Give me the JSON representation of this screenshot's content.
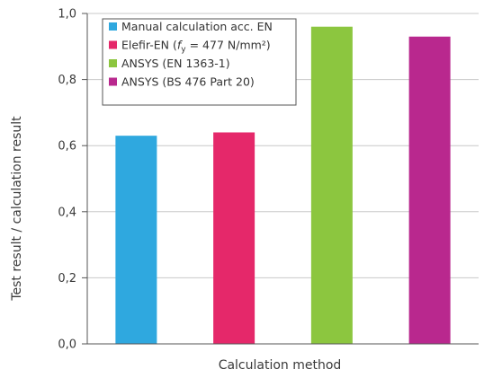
{
  "chart_data": {
    "type": "bar",
    "title": "",
    "xlabel": "Calculation method",
    "ylabel": "Test result / calculation result",
    "ylim": [
      0,
      1.0
    ],
    "yticks": [
      "0,0",
      "0,2",
      "0,4",
      "0,6",
      "0,8",
      "1,0"
    ],
    "ytick_values": [
      0,
      0.2,
      0.4,
      0.6,
      0.8,
      1.0
    ],
    "grid": true,
    "legend_position": "top-left",
    "categories": [
      "Manual calculation acc. EN",
      "Elefir-EN (fy = 477 N/mm²)",
      "ANSYS (EN 1363-1)",
      "ANSYS (BS 476 Part 20)"
    ],
    "values": [
      0.63,
      0.64,
      0.96,
      0.93
    ],
    "colors": [
      "#2fa8df",
      "#e5286a",
      "#8cc63f",
      "#b9288e"
    ],
    "legend": [
      {
        "label": "Manual calculation acc. EN",
        "color": "#2fa8df"
      },
      {
        "label_prefix": "Elefir-EN (",
        "label_var": "f",
        "label_sub": "y",
        "label_suffix": " = 477 N/mm²)",
        "color": "#e5286a"
      },
      {
        "label": "ANSYS (EN 1363-1)",
        "color": "#8cc63f"
      },
      {
        "label": "ANSYS (BS 476 Part 20)",
        "color": "#b9288e"
      }
    ]
  }
}
